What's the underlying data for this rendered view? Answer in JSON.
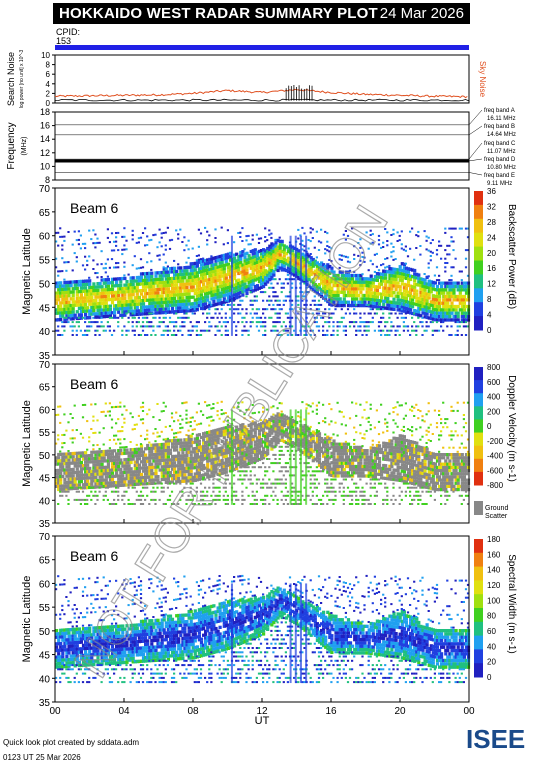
{
  "header": {
    "title": "HOKKAIDO WEST RADAR SUMMARY PLOT",
    "date": "24 Mar 2026",
    "cpid_label": "CPID:",
    "cpid_value": "153"
  },
  "colors": {
    "cpid_bar": "#2020e6",
    "sky_noise": "#e05020",
    "ground_scatter": "#888888"
  },
  "watermark": "NOT FOR PUBLICATION",
  "footer": {
    "note": "Quick look plot created by sddata.adm",
    "time": "0123 UT 25 Mar 2026"
  },
  "logo": {
    "text": "ISEE"
  },
  "chart_data": [
    {
      "type": "line",
      "ylabel": "Search Noise",
      "ysublabel": "log power [no unit] x 10^-3",
      "yticks": [
        "0",
        "2",
        "4",
        "6",
        "8",
        "10"
      ],
      "ylim": [
        0,
        10
      ],
      "series": [
        {
          "name": "Sky Noise",
          "x": [
            0,
            2,
            4,
            6,
            8,
            10,
            12,
            14,
            16,
            18,
            20,
            22,
            24
          ],
          "values": [
            1.4,
            1.5,
            1.6,
            1.7,
            2.0,
            2.6,
            2.2,
            2.8,
            2.2,
            1.8,
            1.6,
            1.4,
            1.3
          ]
        }
      ],
      "xlim": [
        0,
        24
      ],
      "grid": false
    },
    {
      "type": "line",
      "ylabel": "Frequency",
      "yunit": "(MHz)",
      "yticks": [
        "8",
        "10",
        "12",
        "14",
        "16",
        "18"
      ],
      "ylim": [
        8,
        18
      ],
      "series": [
        {
          "x": [
            0,
            24
          ],
          "values": [
            10.8,
            10.8
          ]
        }
      ],
      "freq_bands": [
        "freq band A",
        "16.11 MHz",
        "freq band B",
        "14.64 MHz",
        "freq band C",
        "11.07 MHz",
        "freq band D",
        "10.80 MHz",
        "freq band E",
        "9.11 MHz"
      ],
      "band_values": [
        16.11,
        14.64,
        11.07,
        10.8,
        9.11
      ]
    },
    {
      "type": "heatmap",
      "beam_label": "Beam  6",
      "ylabel": "Magnetic Latitude",
      "yticks": [
        "35",
        "40",
        "45",
        "50",
        "55",
        "60",
        "65",
        "70"
      ],
      "ylim": [
        35,
        70
      ],
      "xlim": [
        0,
        24
      ],
      "colorbar_label": "Backscatter Power (dB)",
      "colorbar_ticks": [
        "0",
        "4",
        "8",
        "12",
        "16",
        "20",
        "24",
        "28",
        "32",
        "36"
      ],
      "colorbar_colors": [
        "#2020c0",
        "#2040e0",
        "#20a0f0",
        "#20c080",
        "#40d020",
        "#a0e010",
        "#e0e010",
        "#f0c010",
        "#f08010",
        "#e03010"
      ],
      "band": {
        "x": [
          0,
          2,
          4,
          6,
          8,
          10,
          12,
          13,
          14,
          16,
          18,
          20,
          22,
          24
        ],
        "center": [
          46,
          46.5,
          47,
          48,
          49,
          51,
          53,
          56,
          54,
          49,
          48,
          49,
          46,
          46
        ],
        "width": [
          4,
          4,
          4,
          4.5,
          5,
          5,
          4,
          3,
          3,
          4,
          3,
          5,
          4,
          4
        ]
      }
    },
    {
      "type": "heatmap",
      "beam_label": "Beam  6",
      "ylabel": "Magnetic Latitude",
      "yticks": [
        "35",
        "40",
        "45",
        "50",
        "55",
        "60",
        "65",
        "70"
      ],
      "ylim": [
        35,
        70
      ],
      "xlim": [
        0,
        24
      ],
      "colorbar_label": "Doppler Velocity (m s-1)",
      "colorbar_ticks": [
        "800",
        "600",
        "400",
        "200",
        "0",
        "-200",
        "-400",
        "-600",
        "-800"
      ],
      "colorbar_colors": [
        "#2020c0",
        "#2040e0",
        "#20a0f0",
        "#20c080",
        "#40d020",
        "#e0e010",
        "#f0c010",
        "#f08010",
        "#e03010"
      ],
      "ground_scatter_label": "Ground Scatter",
      "band": {
        "x": [
          0,
          2,
          4,
          6,
          8,
          10,
          12,
          13,
          14,
          16,
          18,
          20,
          22,
          24
        ],
        "center": [
          46,
          46.5,
          47,
          48,
          49,
          51,
          53,
          56,
          54,
          49,
          48,
          49,
          46,
          46
        ],
        "width": [
          4,
          4,
          4,
          4.5,
          5,
          5,
          4,
          3,
          3,
          4,
          3,
          5,
          4,
          4
        ]
      }
    },
    {
      "type": "heatmap",
      "beam_label": "Beam  6",
      "ylabel": "Magnetic Latitude",
      "yticks": [
        "35",
        "40",
        "45",
        "50",
        "55",
        "60",
        "65",
        "70"
      ],
      "ylim": [
        35,
        70
      ],
      "xlim": [
        0,
        24
      ],
      "xticks": [
        "00",
        "04",
        "08",
        "12",
        "16",
        "20",
        "00"
      ],
      "xlabel": "UT",
      "colorbar_label": "Spectral Width (m s-1)",
      "colorbar_ticks": [
        "0",
        "20",
        "40",
        "60",
        "80",
        "100",
        "120",
        "140",
        "160",
        "180"
      ],
      "colorbar_colors": [
        "#2020c0",
        "#2040e0",
        "#20a0f0",
        "#20c080",
        "#40d020",
        "#a0e010",
        "#e0e010",
        "#f0c010",
        "#f08010",
        "#e03010"
      ],
      "band": {
        "x": [
          0,
          2,
          4,
          6,
          8,
          10,
          12,
          13,
          14,
          16,
          18,
          20,
          22,
          24
        ],
        "center": [
          46,
          46.5,
          47,
          48,
          49,
          51,
          53,
          56,
          54,
          49,
          48,
          49,
          46,
          46
        ],
        "width": [
          4,
          4,
          4,
          4.5,
          5,
          5,
          4,
          3,
          3,
          4,
          3,
          5,
          4,
          4
        ]
      }
    }
  ]
}
